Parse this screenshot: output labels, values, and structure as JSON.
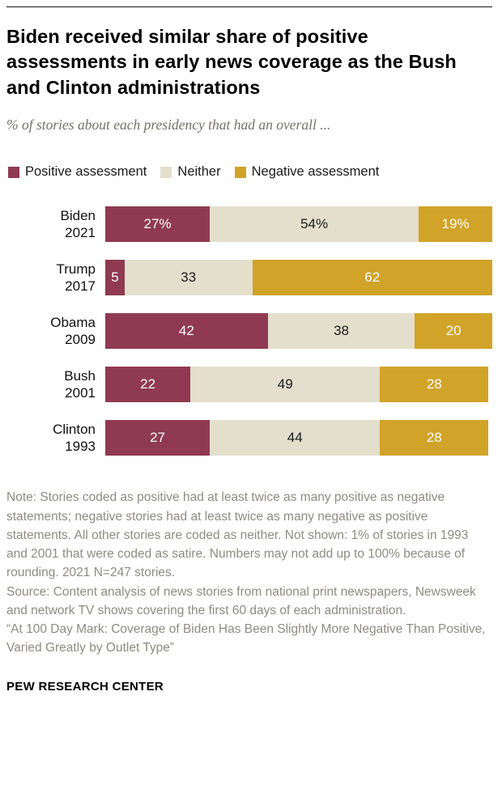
{
  "colors": {
    "positive": "#8f3a52",
    "neither": "#e4decd",
    "negative": "#d1a329",
    "title": "#000000",
    "subtitle": "#75716b",
    "note": "#8e8b85",
    "bar_label_light": "#ffffff",
    "bar_label_dark": "#1a1a1a"
  },
  "header": {
    "title": "Biden received similar share of positive assessments in early news coverage as the Bush and Clinton administrations",
    "subtitle": "% of stories about each presidency that had an overall ..."
  },
  "legend": {
    "items": [
      {
        "label": "Positive assessment"
      },
      {
        "label": "Neither"
      },
      {
        "label": "Negative assessment"
      }
    ]
  },
  "chart_data": {
    "type": "bar",
    "orientation": "horizontal",
    "stacked": true,
    "title": "Biden received similar share of positive assessments in early news coverage as the Bush and Clinton administrations",
    "subtitle": "% of stories about each presidency that had an overall ...",
    "categories": [
      "Biden 2021",
      "Trump 2017",
      "Obama 2009",
      "Bush 2001",
      "Clinton 1993"
    ],
    "series": [
      {
        "name": "Positive assessment",
        "color": "#8f3a52",
        "values": [
          27,
          5,
          42,
          22,
          27
        ]
      },
      {
        "name": "Neither",
        "color": "#e4decd",
        "values": [
          54,
          33,
          38,
          49,
          44
        ]
      },
      {
        "name": "Negative assessment",
        "color": "#d1a329",
        "values": [
          19,
          62,
          20,
          28,
          28
        ]
      }
    ],
    "xlim": [
      0,
      100
    ],
    "grid": false,
    "legend_position": "top",
    "data_labels": true
  },
  "rows": [
    {
      "name": "Biden",
      "year": "2021",
      "pos": {
        "v": 27,
        "label": "27%"
      },
      "mid": {
        "v": 54,
        "label": "54%"
      },
      "neg": {
        "v": 19,
        "label": "19%"
      }
    },
    {
      "name": "Trump",
      "year": "2017",
      "pos": {
        "v": 5,
        "label": "5"
      },
      "mid": {
        "v": 33,
        "label": "33"
      },
      "neg": {
        "v": 62,
        "label": "62"
      }
    },
    {
      "name": "Obama",
      "year": "2009",
      "pos": {
        "v": 42,
        "label": "42"
      },
      "mid": {
        "v": 38,
        "label": "38"
      },
      "neg": {
        "v": 20,
        "label": "20"
      }
    },
    {
      "name": "Bush",
      "year": "2001",
      "pos": {
        "v": 22,
        "label": "22"
      },
      "mid": {
        "v": 49,
        "label": "49"
      },
      "neg": {
        "v": 28,
        "label": "28"
      }
    },
    {
      "name": "Clinton",
      "year": "1993",
      "pos": {
        "v": 27,
        "label": "27"
      },
      "mid": {
        "v": 44,
        "label": "44"
      },
      "neg": {
        "v": 28,
        "label": "28"
      }
    }
  ],
  "notes": {
    "note": "Note: Stories coded as positive had at least twice as many positive as negative statements; negative stories had at least twice as many negative as positive statements. All other stories are coded as neither. Not shown: 1% of stories in 1993 and 2001 that were coded as satire. Numbers may not add up to 100% because of rounding. 2021 N=247 stories.",
    "source": "Source: Content analysis of news stories from national print newspapers, Newsweek and network TV shows covering the first 60 days of each administration.",
    "quote": "“At 100 Day Mark: Coverage of Biden Has Been Slightly More Negative Than Positive, Varied Greatly by Outlet Type”"
  },
  "footer": {
    "brand": "PEW RESEARCH CENTER"
  }
}
